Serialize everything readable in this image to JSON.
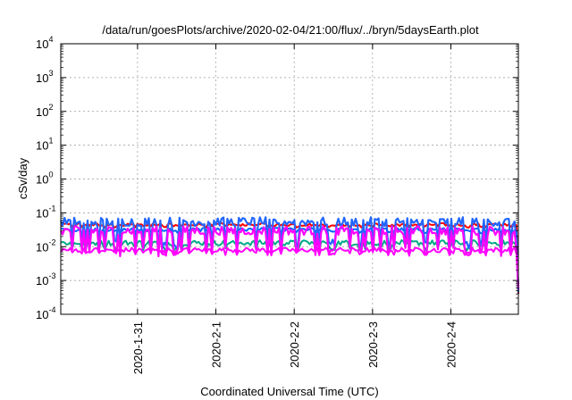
{
  "chart_data": {
    "type": "line",
    "title": "/data/run/goesPlots/archive/2020-02-04/21:00/flux/../bryn/5daysEarth.plot",
    "xlabel": "Coordinated Universal Time (UTC)",
    "ylabel": "cSv/day",
    "yscale": "log",
    "ylim": [
      0.0001,
      10000
    ],
    "xlim": [
      0,
      5
    ],
    "y_ticks": [
      {
        "base": "10",
        "exp": "-4",
        "value": 0.0001
      },
      {
        "base": "10",
        "exp": "-3",
        "value": 0.001
      },
      {
        "base": "10",
        "exp": "-2",
        "value": 0.01
      },
      {
        "base": "10",
        "exp": "-1",
        "value": 0.1
      },
      {
        "base": "10",
        "exp": "0",
        "value": 1
      },
      {
        "base": "10",
        "exp": "1",
        "value": 10
      },
      {
        "base": "10",
        "exp": "2",
        "value": 100
      },
      {
        "base": "10",
        "exp": "3",
        "value": 1000
      },
      {
        "base": "10",
        "exp": "4",
        "value": 10000
      }
    ],
    "x_ticks": [
      {
        "label": "2020-1-31",
        "value": 1
      },
      {
        "label": "2020-2-1",
        "value": 2
      },
      {
        "label": "2020-2-2",
        "value": 3
      },
      {
        "label": "2020-2-3",
        "value": 4
      },
      {
        "label": "2020-2-4",
        "value": 5
      }
    ],
    "grid": true,
    "series": [
      {
        "color": "#ff0000",
        "base": 0.045,
        "dip_to": 0.04,
        "noise": 0.1
      },
      {
        "color": "#0066ff",
        "base": 0.032,
        "dip_to": 0.028,
        "noise": 0.12
      },
      {
        "color": "#00aa88",
        "base": 0.013,
        "dip_to": 0.009,
        "noise": 0.18
      },
      {
        "color": "#ff00ff",
        "base": 0.008,
        "dip_to": 0.0065,
        "noise": 0.15
      },
      {
        "color": "#2266ff",
        "base": 0.055,
        "dip_to": 0.012,
        "noise": 0.3
      },
      {
        "color": "#ff00ff",
        "base": 0.03,
        "dip_to": 0.007,
        "noise": 0.3
      }
    ],
    "end_drop_value": 0.0004
  }
}
